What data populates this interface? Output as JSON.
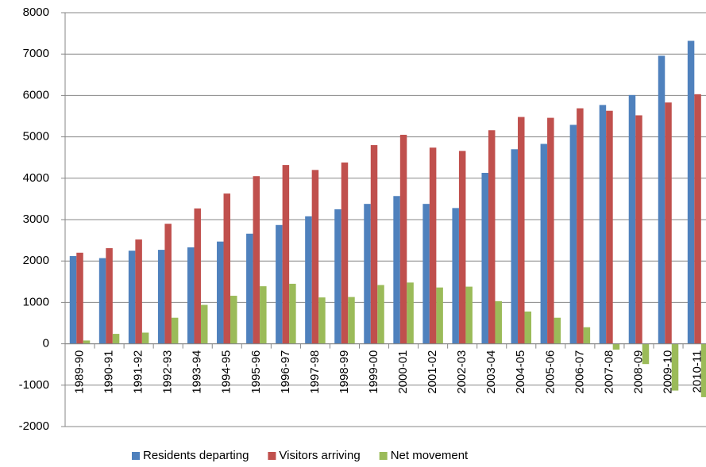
{
  "chart_data": {
    "type": "bar",
    "categories": [
      "1989-90",
      "1990-91",
      "1991-92",
      "1992-93",
      "1993-94",
      "1994-95",
      "1995-96",
      "1996-97",
      "1997-98",
      "1998-99",
      "1999-00",
      "2000-01",
      "2001-02",
      "2002-03",
      "2003-04",
      "2004-05",
      "2005-06",
      "2006-07",
      "2007-08",
      "2008-09",
      "2009-10",
      "2010-11"
    ],
    "series": [
      {
        "name": "Residents departing",
        "color": "#4f81bd",
        "values": [
          2120,
          2070,
          2250,
          2270,
          2330,
          2470,
          2660,
          2870,
          3080,
          3250,
          3380,
          3570,
          3380,
          3280,
          4130,
          4700,
          4830,
          5290,
          5770,
          6010,
          6960,
          7320
        ]
      },
      {
        "name": "Visitors arriving",
        "color": "#c0504d",
        "values": [
          2200,
          2310,
          2520,
          2900,
          3270,
          3630,
          4050,
          4320,
          4200,
          4380,
          4800,
          5050,
          4740,
          4660,
          5160,
          5480,
          5460,
          5690,
          5630,
          5520,
          5830,
          6030
        ]
      },
      {
        "name": "Net movement",
        "color": "#9bbb59",
        "values": [
          80,
          240,
          270,
          630,
          940,
          1160,
          1390,
          1450,
          1120,
          1130,
          1420,
          1480,
          1360,
          1380,
          1030,
          780,
          630,
          400,
          -140,
          -490,
          -1130,
          -1290
        ]
      }
    ],
    "ylim": [
      -2000,
      8000
    ],
    "yticks": [
      -2000,
      -1000,
      0,
      1000,
      2000,
      3000,
      4000,
      5000,
      6000,
      7000,
      8000
    ],
    "grid": true,
    "legend": "bottom"
  }
}
